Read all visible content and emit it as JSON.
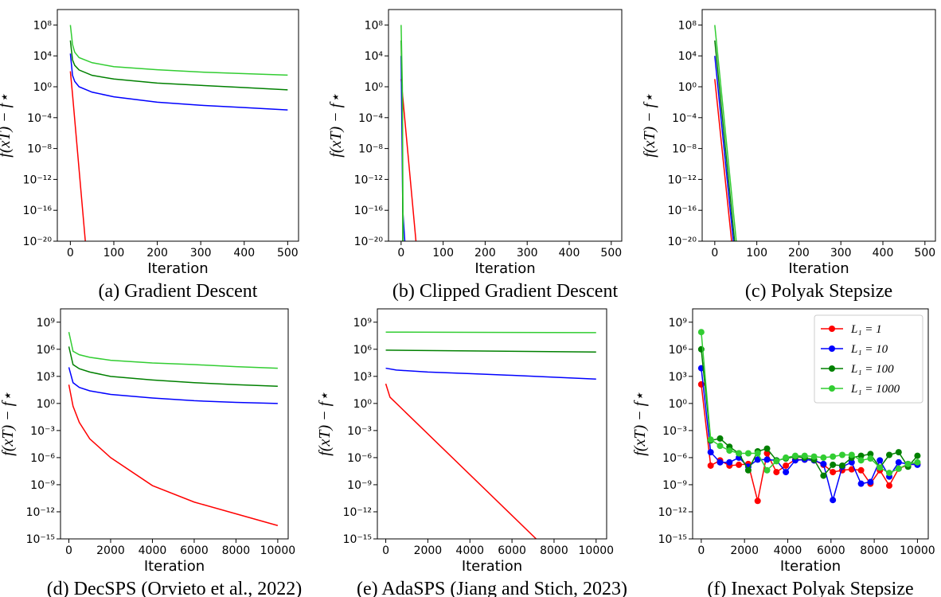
{
  "chart_data": [
    {
      "type": "line",
      "caption": "(a) Gradient Descent",
      "xlabel": "Iteration",
      "ylabel": "f(xT) − f⋆",
      "yscale": "log",
      "xlim": [
        -30,
        525
      ],
      "ylim": [
        1e-20,
        10000000000.0
      ],
      "xticks": [
        0,
        100,
        200,
        300,
        400,
        500
      ],
      "yticks": [
        {
          "value": 100000000.0,
          "label": "10⁸"
        },
        {
          "value": 10000.0,
          "label": "10⁴"
        },
        {
          "value": 1,
          "label": "10⁰"
        },
        {
          "value": 0.0001,
          "label": "10⁻⁴"
        },
        {
          "value": 1e-08,
          "label": "10⁻⁸"
        },
        {
          "value": 1e-12,
          "label": "10⁻¹²"
        },
        {
          "value": 1e-16,
          "label": "10⁻¹⁶"
        },
        {
          "value": 1e-20,
          "label": "10⁻²⁰"
        }
      ],
      "series": [
        {
          "color": "#ff0000",
          "x": [
            0,
            5,
            36
          ],
          "values": [
            100,
            0.1,
            1e-21
          ]
        },
        {
          "color": "#0000ff",
          "x": [
            0,
            5,
            10,
            20,
            50,
            100,
            200,
            300,
            400,
            500
          ],
          "values": [
            20000,
            30,
            5,
            1,
            0.2,
            0.05,
            0.01,
            0.004,
            0.002,
            0.001
          ]
        },
        {
          "color": "#008000",
          "x": [
            0,
            5,
            10,
            20,
            50,
            100,
            200,
            300,
            400,
            500
          ],
          "values": [
            1000000,
            3000,
            600,
            150,
            30,
            10,
            3,
            1.5,
            0.8,
            0.4
          ]
        },
        {
          "color": "#32cd32",
          "x": [
            0,
            5,
            10,
            20,
            50,
            100,
            200,
            300,
            400,
            500
          ],
          "values": [
            100000000,
            300000,
            30000,
            6000,
            1300,
            400,
            160,
            80,
            50,
            32
          ]
        }
      ]
    },
    {
      "type": "line",
      "caption": "(b) Clipped Gradient Descent",
      "xlabel": "Iteration",
      "ylabel": "f(xT) − f⋆",
      "yscale": "log",
      "xlim": [
        -30,
        525
      ],
      "ylim": [
        1e-20,
        10000000000.0
      ],
      "xticks": [
        0,
        100,
        200,
        300,
        400,
        500
      ],
      "yticks": [
        {
          "value": 100000000.0,
          "label": "10⁸"
        },
        {
          "value": 10000.0,
          "label": "10⁴"
        },
        {
          "value": 1,
          "label": "10⁰"
        },
        {
          "value": 0.0001,
          "label": "10⁻⁴"
        },
        {
          "value": 1e-08,
          "label": "10⁻⁸"
        },
        {
          "value": 1e-12,
          "label": "10⁻¹²"
        },
        {
          "value": 1e-16,
          "label": "10⁻¹⁶"
        },
        {
          "value": 1e-20,
          "label": "10⁻²⁰"
        }
      ],
      "series": [
        {
          "color": "#ff0000",
          "x": [
            0,
            37
          ],
          "values": [
            10,
            1e-21
          ]
        },
        {
          "color": "#0000ff",
          "x": [
            0,
            4,
            10
          ],
          "values": [
            10000,
            1e-16,
            1e-21
          ]
        },
        {
          "color": "#008000",
          "x": [
            0,
            3,
            4
          ],
          "values": [
            1000000,
            0.01,
            1e-21
          ]
        },
        {
          "color": "#32cd32",
          "x": [
            0,
            3,
            5
          ],
          "values": [
            100000000,
            1,
            1e-21
          ]
        }
      ]
    },
    {
      "type": "line",
      "caption": "(c) Polyak Stepsize",
      "xlabel": "Iteration",
      "ylabel": "f(xT) − f⋆",
      "yscale": "log",
      "xlim": [
        -30,
        525
      ],
      "ylim": [
        1e-20,
        10000000000.0
      ],
      "xticks": [
        0,
        100,
        200,
        300,
        400,
        500
      ],
      "yticks": [
        {
          "value": 100000000.0,
          "label": "10⁸"
        },
        {
          "value": 10000.0,
          "label": "10⁴"
        },
        {
          "value": 1,
          "label": "10⁰"
        },
        {
          "value": 0.0001,
          "label": "10⁻⁴"
        },
        {
          "value": 1e-08,
          "label": "10⁻⁸"
        },
        {
          "value": 1e-12,
          "label": "10⁻¹²"
        },
        {
          "value": 1e-16,
          "label": "10⁻¹⁶"
        },
        {
          "value": 1e-20,
          "label": "10⁻²⁰"
        }
      ],
      "series": [
        {
          "color": "#ff0000",
          "x": [
            0,
            42
          ],
          "values": [
            10,
            1e-21
          ]
        },
        {
          "color": "#0000ff",
          "x": [
            0,
            46
          ],
          "values": [
            10000,
            1e-21
          ]
        },
        {
          "color": "#008000",
          "x": [
            0,
            49
          ],
          "values": [
            1000000,
            1e-21
          ]
        },
        {
          "color": "#32cd32",
          "x": [
            0,
            53
          ],
          "values": [
            100000000,
            1e-21
          ]
        }
      ]
    },
    {
      "type": "line",
      "caption": "(d) DecSPS (Orvieto et al., 2022)",
      "xlabel": "Iteration",
      "ylabel": "f(xT) − f⋆",
      "yscale": "log",
      "xlim": [
        -400,
        10500
      ],
      "ylim": [
        1e-15,
        30000000000.0
      ],
      "xticks": [
        0,
        2000,
        4000,
        6000,
        8000,
        10000
      ],
      "yticks": [
        {
          "value": 1000000000.0,
          "label": "10⁹"
        },
        {
          "value": 1000000.0,
          "label": "10⁶"
        },
        {
          "value": 1000.0,
          "label": "10³"
        },
        {
          "value": 1,
          "label": "10⁰"
        },
        {
          "value": 0.001,
          "label": "10⁻³"
        },
        {
          "value": 1e-06,
          "label": "10⁻⁶"
        },
        {
          "value": 1e-09,
          "label": "10⁻⁹"
        },
        {
          "value": 1e-12,
          "label": "10⁻¹²"
        },
        {
          "value": 1e-15,
          "label": "10⁻¹⁵"
        }
      ],
      "series": [
        {
          "color": "#ff0000",
          "x": [
            0,
            200,
            500,
            1000,
            2000,
            4000,
            6000,
            8000,
            10000
          ],
          "values": [
            120,
            0.5,
            0.008,
            0.00012,
            1e-06,
            8e-10,
            1.2e-11,
            6e-13,
            3e-14
          ]
        },
        {
          "color": "#0000ff",
          "x": [
            0,
            200,
            500,
            1000,
            2000,
            4000,
            6000,
            8000,
            10000
          ],
          "values": [
            10000,
            200,
            60,
            25,
            10,
            4,
            2,
            1.3,
            1
          ]
        },
        {
          "color": "#008000",
          "x": [
            0,
            200,
            500,
            1000,
            2000,
            4000,
            6000,
            8000,
            10000
          ],
          "values": [
            2000000,
            20000,
            7000,
            3000,
            1000,
            400,
            200,
            120,
            80
          ]
        },
        {
          "color": "#32cd32",
          "x": [
            0,
            200,
            500,
            1000,
            2000,
            4000,
            6000,
            8000,
            10000
          ],
          "values": [
            80000000,
            600000,
            250000,
            130000,
            60000,
            30000,
            20000,
            12000,
            8000
          ]
        }
      ]
    },
    {
      "type": "line",
      "caption": "(e) AdaSPS (Jiang and Stich, 2023)",
      "xlabel": "Iteration",
      "ylabel": "f(xT) − f⋆",
      "yscale": "log",
      "xlim": [
        -400,
        10500
      ],
      "ylim": [
        1e-15,
        30000000000.0
      ],
      "xticks": [
        0,
        2000,
        4000,
        6000,
        8000,
        10000
      ],
      "yticks": [
        {
          "value": 1000000000.0,
          "label": "10⁹"
        },
        {
          "value": 1000000.0,
          "label": "10⁶"
        },
        {
          "value": 1000.0,
          "label": "10³"
        },
        {
          "value": 1,
          "label": "10⁰"
        },
        {
          "value": 0.001,
          "label": "10⁻³"
        },
        {
          "value": 1e-06,
          "label": "10⁻⁶"
        },
        {
          "value": 1e-09,
          "label": "10⁻⁹"
        },
        {
          "value": 1e-12,
          "label": "10⁻¹²"
        },
        {
          "value": 1e-15,
          "label": "10⁻¹⁵"
        }
      ],
      "series": [
        {
          "color": "#ff0000",
          "x": [
            0,
            200,
            7150
          ],
          "values": [
            150,
            5,
            1e-15
          ]
        },
        {
          "color": "#0000ff",
          "x": [
            0,
            500,
            2000,
            4000,
            6000,
            8000,
            10000
          ],
          "values": [
            8000,
            5000,
            3000,
            2000,
            1300,
            800,
            500
          ]
        },
        {
          "color": "#008000",
          "x": [
            0,
            10000
          ],
          "values": [
            800000,
            500000
          ]
        },
        {
          "color": "#32cd32",
          "x": [
            0,
            10000
          ],
          "values": [
            80000000,
            70000000
          ]
        }
      ]
    },
    {
      "type": "line",
      "caption": "(f) Inexact Polyak Stepsize",
      "xlabel": "Iteration",
      "ylabel": "f(xT) − f⋆",
      "yscale": "log",
      "xlim": [
        -400,
        10500
      ],
      "ylim": [
        1e-15,
        30000000000.0
      ],
      "xticks": [
        0,
        2000,
        4000,
        6000,
        8000,
        10000
      ],
      "yticks": [
        {
          "value": 1000000000.0,
          "label": "10⁹"
        },
        {
          "value": 1000000.0,
          "label": "10⁶"
        },
        {
          "value": 1000.0,
          "label": "10³"
        },
        {
          "value": 1,
          "label": "10⁰"
        },
        {
          "value": 0.001,
          "label": "10⁻³"
        },
        {
          "value": 1e-06,
          "label": "10⁻⁶"
        },
        {
          "value": 1e-09,
          "label": "10⁻⁹"
        },
        {
          "value": 1e-12,
          "label": "10⁻¹²"
        },
        {
          "value": 1e-15,
          "label": "10⁻¹⁵"
        }
      ],
      "markers": true,
      "legend": "upper right",
      "series": [
        {
          "name": "L₁ = 1",
          "color": "#ff0000",
          "x": [
            0,
            435,
            870,
            1304,
            1739,
            2174,
            2609,
            3043,
            3478,
            3913,
            4348,
            4783,
            5217,
            5652,
            6087,
            6522,
            6957,
            7391,
            7826,
            8261,
            8696,
            9130,
            9565,
            10000
          ],
          "values": [
            130,
            1.3e-07,
            5e-07,
            1.3e-07,
            1.6e-07,
            2e-07,
            1.6e-11,
            3e-06,
            2.5e-08,
            1.3e-07,
            6e-07,
            6e-07,
            5e-07,
            1.6e-07,
            2.5e-08,
            4e-08,
            5e-08,
            4e-08,
            1.3e-09,
            4e-08,
            8e-10,
            6e-08,
            1.6e-07,
            2e-07
          ]
        },
        {
          "name": "L₁ = 10",
          "color": "#0000ff",
          "x": [
            0,
            435,
            870,
            1304,
            1739,
            2174,
            2609,
            3043,
            3478,
            3913,
            4348,
            4783,
            5217,
            5652,
            6087,
            6522,
            6957,
            7391,
            7826,
            8261,
            8696,
            9130,
            9565,
            10000
          ],
          "values": [
            8000,
            4e-06,
            3e-07,
            3e-07,
            1e-06,
            1e-07,
            6e-07,
            6e-07,
            5e-07,
            2.5e-08,
            5e-07,
            6e-07,
            5e-07,
            2e-07,
            2e-11,
            1e-07,
            3e-07,
            1.3e-09,
            2e-09,
            5e-07,
            8e-09,
            3e-07,
            2e-07,
            1.6e-07
          ]
        },
        {
          "name": "L₁ = 100",
          "color": "#008000",
          "x": [
            0,
            435,
            870,
            1304,
            1739,
            2174,
            2609,
            3043,
            3478,
            3913,
            4348,
            4783,
            5217,
            5652,
            6087,
            6522,
            6957,
            7391,
            7826,
            8261,
            8696,
            9130,
            9565,
            10000
          ],
          "values": [
            1000000,
            8e-05,
            0.00013,
            1.6e-05,
            3e-06,
            4e-08,
            5e-06,
            1e-05,
            5e-07,
            8e-07,
            1.3e-06,
            1e-06,
            6e-07,
            1e-08,
            1.6e-07,
            1.3e-07,
            1e-06,
            1.6e-06,
            2.5e-06,
            8e-08,
            2e-06,
            4e-06,
            1e-07,
            1.6e-06
          ]
        },
        {
          "name": "L₁ = 1000",
          "color": "#32cd32",
          "x": [
            0,
            435,
            870,
            1304,
            1739,
            2174,
            2609,
            3043,
            3478,
            3913,
            4348,
            4783,
            5217,
            5652,
            6087,
            6522,
            6957,
            7391,
            7826,
            8261,
            8696,
            9130,
            9565,
            10000
          ],
          "values": [
            80000000,
            0.0001,
            2e-05,
            6e-06,
            3e-06,
            3e-06,
            3e-06,
            4e-08,
            4e-07,
            1e-06,
            1.6e-06,
            1.6e-06,
            1.3e-06,
            1e-06,
            1.3e-06,
            2e-06,
            2e-06,
            5e-07,
            8e-07,
            8e-08,
            2e-08,
            6e-08,
            2e-07,
            3e-07
          ]
        }
      ]
    }
  ]
}
